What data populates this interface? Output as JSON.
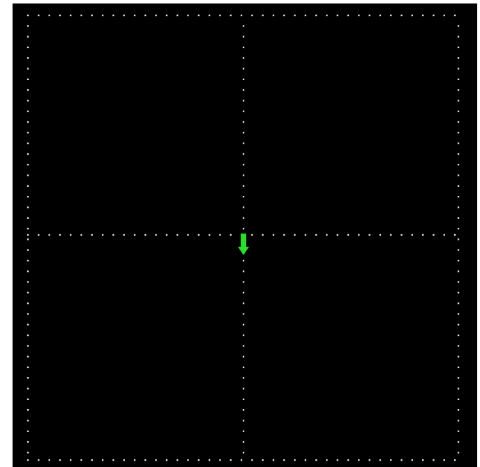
{
  "board": {
    "background_color": "#000000",
    "grid_dot_color": "#e8e8e8",
    "grid_lines": "dotted",
    "quadrants": 4
  },
  "player": {
    "icon": "green-down-arrow-icon",
    "color": "#2edc2e",
    "direction": "down",
    "location": "center"
  }
}
